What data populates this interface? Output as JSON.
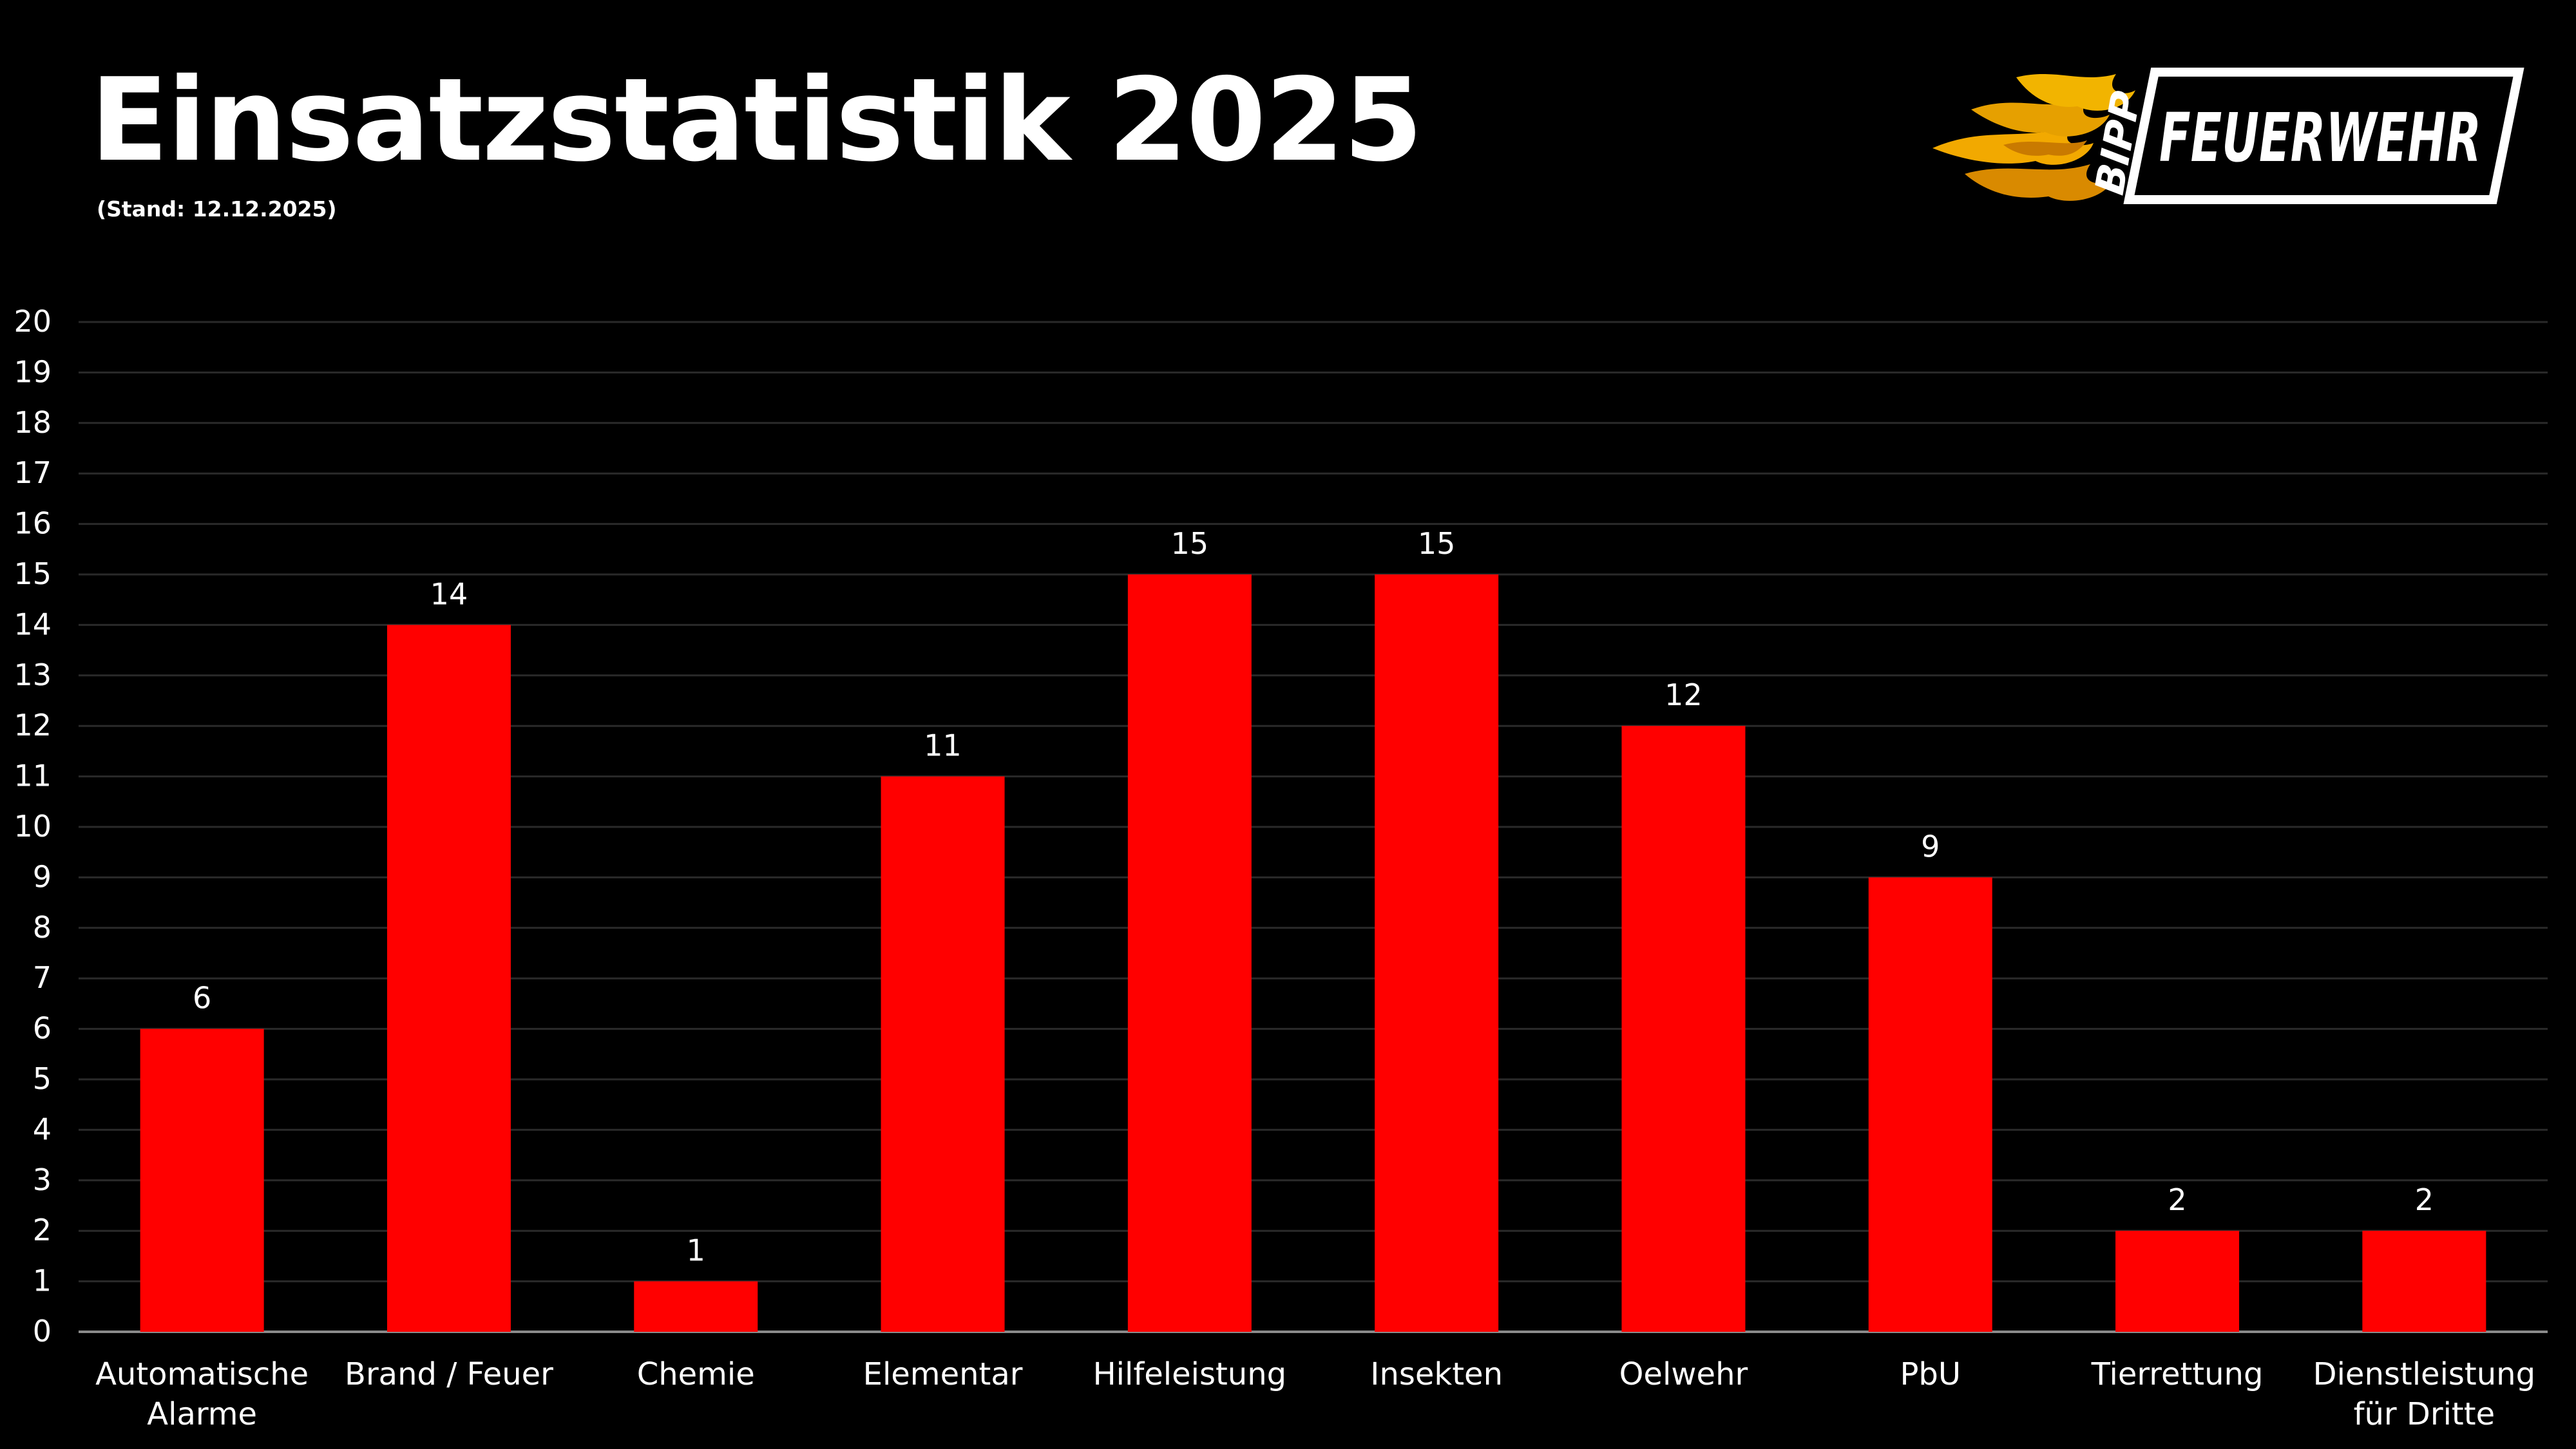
{
  "header": {
    "title": "Einsatzstatistik 2025",
    "subtitle": "(Stand: 12.12.2025)"
  },
  "logo": {
    "name": "bipp-feuerwehr-logo",
    "text_small": "BIPP",
    "text_main": "FEUERWEHR",
    "flame_colors": [
      "#f2a900",
      "#e08a00"
    ]
  },
  "colors": {
    "background": "#000000",
    "bar": "#ff0000",
    "grid": "#2a2a2a",
    "text": "#ffffff",
    "axis": "#8a8a8a"
  },
  "chart_data": {
    "type": "bar",
    "categories": [
      "Automatische Alarme",
      "Brand / Feuer",
      "Chemie",
      "Elementar",
      "Hilfeleistung",
      "Insekten",
      "Oelwehr",
      "PbU",
      "Tierrettung",
      "Dienstleistung für Dritte"
    ],
    "category_lines": [
      [
        "Automatische",
        "Alarme"
      ],
      [
        "Brand / Feuer"
      ],
      [
        "Chemie"
      ],
      [
        "Elementar"
      ],
      [
        "Hilfeleistung"
      ],
      [
        "Insekten"
      ],
      [
        "Oelwehr"
      ],
      [
        "PbU"
      ],
      [
        "Tierrettung"
      ],
      [
        "Dienstleistung",
        "für Dritte"
      ]
    ],
    "values": [
      6,
      14,
      1,
      11,
      15,
      15,
      12,
      9,
      2,
      2
    ],
    "ylim": [
      0,
      20
    ],
    "ytick_step": 1,
    "grid": true,
    "data_labels": true,
    "legend": "none"
  }
}
